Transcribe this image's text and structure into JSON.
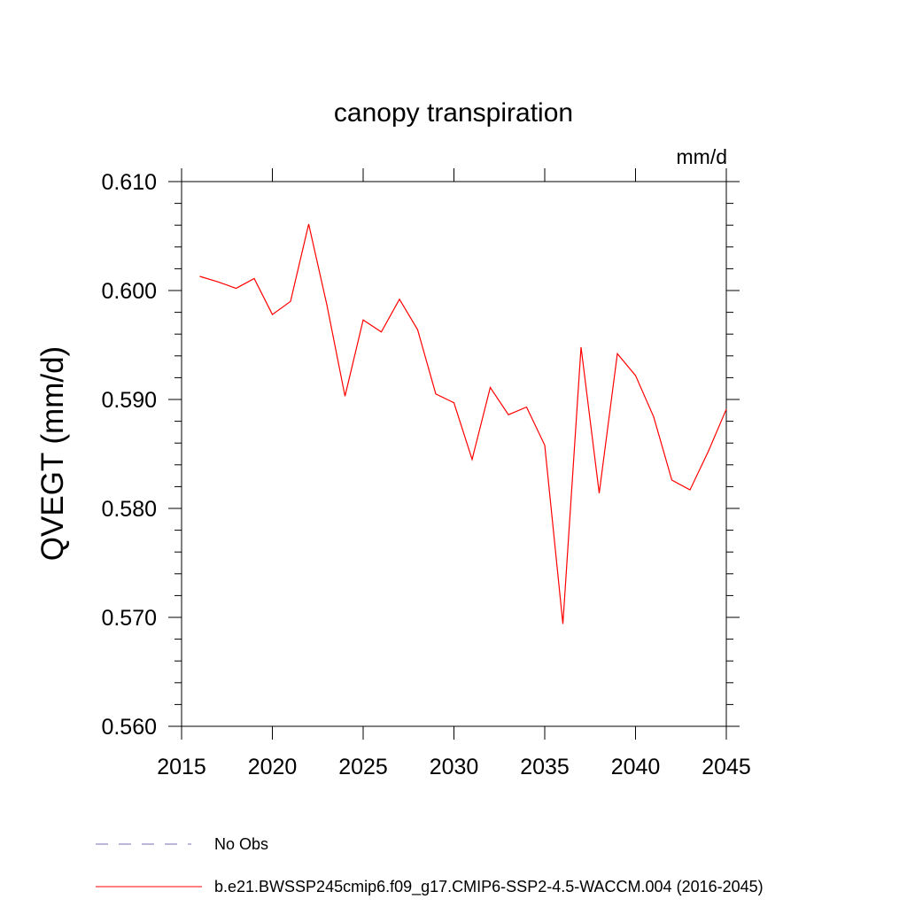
{
  "chart_data": {
    "type": "line",
    "title": "canopy transpiration",
    "units": "mm/d",
    "ylabel": "QVEGT  (mm/d)",
    "xlabel": "",
    "xlim": [
      2015,
      2045
    ],
    "ylim": [
      0.56,
      0.61
    ],
    "x_ticks": [
      2015,
      2020,
      2025,
      2030,
      2035,
      2040,
      2045
    ],
    "x_tick_labels": [
      "2015",
      "2020",
      "2025",
      "2030",
      "2035",
      "2040",
      "2045"
    ],
    "y_ticks": [
      0.56,
      0.57,
      0.58,
      0.59,
      0.6,
      0.61
    ],
    "y_tick_labels": [
      "0.560",
      "0.570",
      "0.580",
      "0.590",
      "0.600",
      "0.610"
    ],
    "grid": false,
    "legend_position": "bottom",
    "legend": [
      {
        "label": "No Obs",
        "color": "#7a6fb0",
        "style": "dashed"
      },
      {
        "label": "b.e21.BWSSP245cmip6.f09_g17.CMIP6-SSP2-4.5-WACCM.004 (2016-2045)",
        "color": "#ff0000",
        "style": "solid"
      }
    ],
    "series": [
      {
        "color": "#ff0000",
        "x": [
          2016,
          2017,
          2018,
          2019,
          2020,
          2021,
          2022,
          2023,
          2024,
          2025,
          2026,
          2027,
          2028,
          2029,
          2030,
          2031,
          2032,
          2033,
          2034,
          2035,
          2036,
          2037,
          2038,
          2039,
          2040,
          2041,
          2042,
          2043,
          2044,
          2045
        ],
        "y": [
          0.6013,
          0.6008,
          0.6002,
          0.6011,
          0.5978,
          0.599,
          0.6061,
          0.5987,
          0.5903,
          0.5973,
          0.5962,
          0.5992,
          0.5964,
          0.5905,
          0.5897,
          0.5845,
          0.5911,
          0.5886,
          0.5893,
          0.5858,
          0.5694,
          0.5948,
          0.5814,
          0.5942,
          0.5922,
          0.5884,
          0.5826,
          0.5817,
          0.5852,
          0.5891
        ]
      }
    ]
  }
}
